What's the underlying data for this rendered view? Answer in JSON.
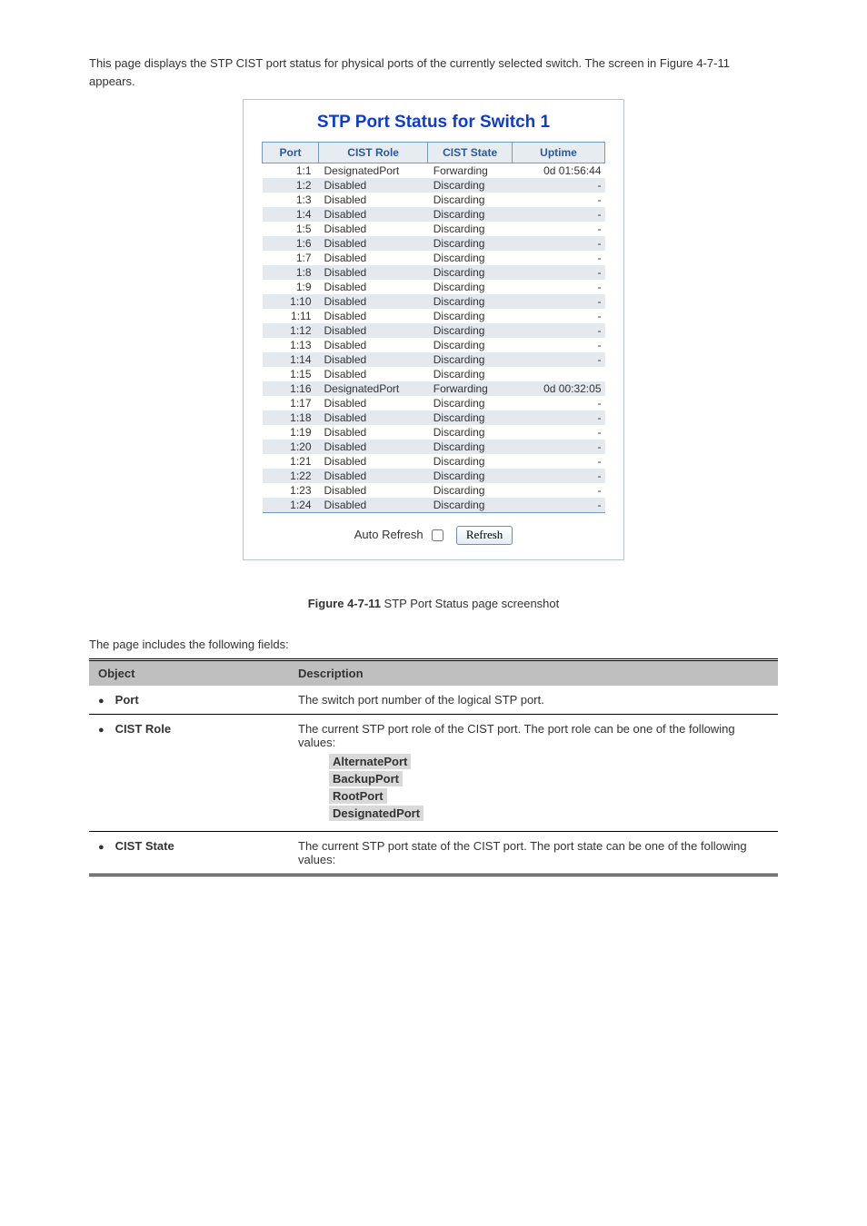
{
  "intro_text": "This page displays the STP CIST port status for physical ports of the currently selected switch. The screen in Figure 4-7-11 appears.",
  "panel": {
    "title": "STP Port Status for Switch 1",
    "headers": {
      "port": "Port",
      "role": "CIST Role",
      "state": "CIST State",
      "uptime": "Uptime"
    },
    "rows": [
      {
        "port": "1:1",
        "role": "DesignatedPort",
        "state": "Forwarding",
        "uptime": "0d 01:56:44"
      },
      {
        "port": "1:2",
        "role": "Disabled",
        "state": "Discarding",
        "uptime": "-"
      },
      {
        "port": "1:3",
        "role": "Disabled",
        "state": "Discarding",
        "uptime": "-"
      },
      {
        "port": "1:4",
        "role": "Disabled",
        "state": "Discarding",
        "uptime": "-"
      },
      {
        "port": "1:5",
        "role": "Disabled",
        "state": "Discarding",
        "uptime": "-"
      },
      {
        "port": "1:6",
        "role": "Disabled",
        "state": "Discarding",
        "uptime": "-"
      },
      {
        "port": "1:7",
        "role": "Disabled",
        "state": "Discarding",
        "uptime": "-"
      },
      {
        "port": "1:8",
        "role": "Disabled",
        "state": "Discarding",
        "uptime": "-"
      },
      {
        "port": "1:9",
        "role": "Disabled",
        "state": "Discarding",
        "uptime": "-"
      },
      {
        "port": "1:10",
        "role": "Disabled",
        "state": "Discarding",
        "uptime": "-"
      },
      {
        "port": "1:11",
        "role": "Disabled",
        "state": "Discarding",
        "uptime": "-"
      },
      {
        "port": "1:12",
        "role": "Disabled",
        "state": "Discarding",
        "uptime": "-"
      },
      {
        "port": "1:13",
        "role": "Disabled",
        "state": "Discarding",
        "uptime": "-"
      },
      {
        "port": "1:14",
        "role": "Disabled",
        "state": "Discarding",
        "uptime": "-"
      },
      {
        "port": "1:15",
        "role": "Disabled",
        "state": "Discarding",
        "uptime": ""
      },
      {
        "port": "1:16",
        "role": "DesignatedPort",
        "state": "Forwarding",
        "uptime": "0d 00:32:05"
      },
      {
        "port": "1:17",
        "role": "Disabled",
        "state": "Discarding",
        "uptime": "-"
      },
      {
        "port": "1:18",
        "role": "Disabled",
        "state": "Discarding",
        "uptime": "-"
      },
      {
        "port": "1:19",
        "role": "Disabled",
        "state": "Discarding",
        "uptime": "-"
      },
      {
        "port": "1:20",
        "role": "Disabled",
        "state": "Discarding",
        "uptime": "-"
      },
      {
        "port": "1:21",
        "role": "Disabled",
        "state": "Discarding",
        "uptime": "-"
      },
      {
        "port": "1:22",
        "role": "Disabled",
        "state": "Discarding",
        "uptime": "-"
      },
      {
        "port": "1:23",
        "role": "Disabled",
        "state": "Discarding",
        "uptime": "-"
      },
      {
        "port": "1:24",
        "role": "Disabled",
        "state": "Discarding",
        "uptime": "-"
      }
    ],
    "auto_refresh_label": "Auto Refresh",
    "refresh_label": "Refresh"
  },
  "caption_figure": "Figure 4-7-11",
  "caption_text": " STP Port Status page screenshot",
  "page_includes": "The page includes the following fields:",
  "desc": {
    "headers": {
      "object": "Object",
      "description": "Description"
    },
    "rows": [
      {
        "object": "Port",
        "description": "The switch port number of the logical STP port."
      },
      {
        "object": "CIST Role",
        "lead": "The current STP port role of the CIST port. The port role can be one of the following values:",
        "roles": [
          {
            "name": "AlternatePort"
          },
          {
            "name": "BackupPort"
          },
          {
            "name": "RootPort"
          },
          {
            "name": "DesignatedPort"
          }
        ]
      },
      {
        "object": "CIST State",
        "description": "The current STP port state of the CIST port. The port state can be one of the following values:"
      }
    ]
  },
  "style": {
    "title_color": "#0f3bd0",
    "header_bg": "#e7ecf1",
    "header_text": "#2a5a9a",
    "row_even_bg": "#e3e9ef",
    "row_odd_bg": "#ffffff",
    "border_color": "#6f9bbf",
    "desc_header_bg": "#bfbfbf",
    "role_highlight_bg": "#d9d9d9"
  }
}
